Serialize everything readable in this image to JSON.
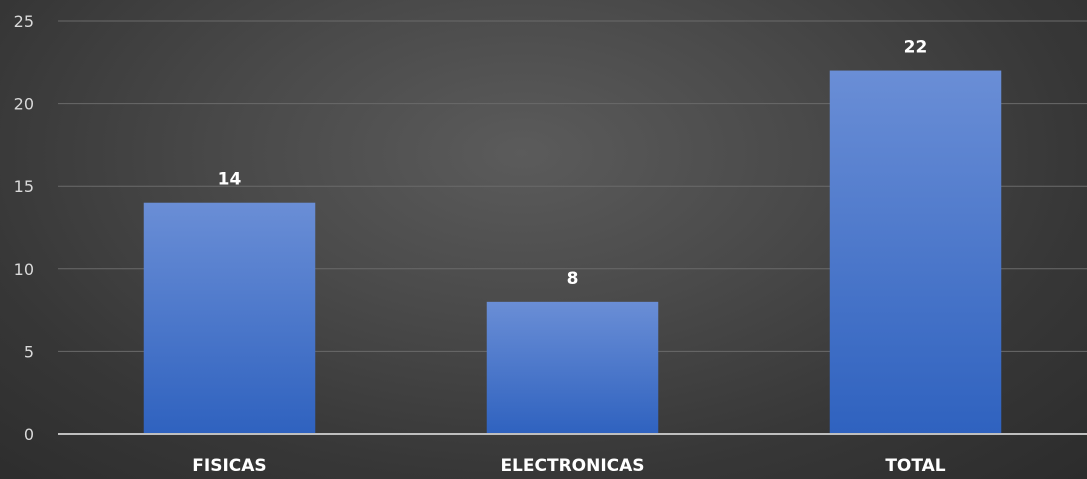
{
  "chart_data": {
    "type": "bar",
    "categories": [
      "FISICAS",
      "ELECTRONICAS",
      "TOTAL"
    ],
    "values": [
      14,
      8,
      22
    ],
    "data_labels": [
      "14",
      "8",
      "22"
    ],
    "yticks": [
      "0",
      "5",
      "10",
      "15",
      "20",
      "25"
    ],
    "ylim": [
      0,
      25
    ],
    "grid": true,
    "bar_color": "#4472c4",
    "background_color": "#404040"
  }
}
